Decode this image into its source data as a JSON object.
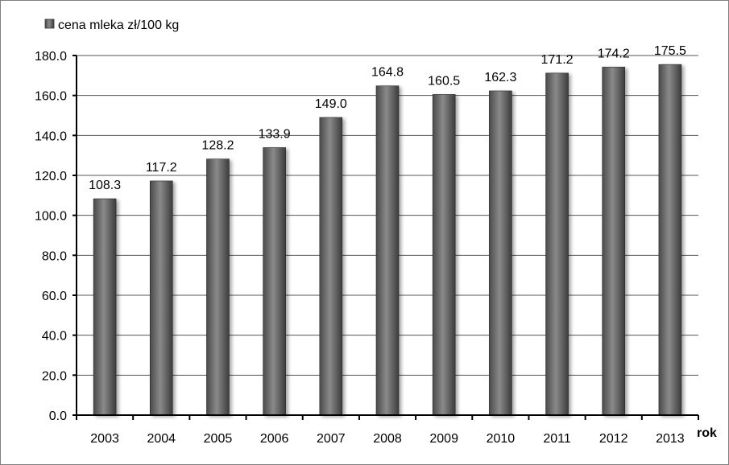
{
  "chart_data": {
    "type": "bar",
    "categories": [
      "2003",
      "2004",
      "2005",
      "2006",
      "2007",
      "2008",
      "2009",
      "2010",
      "2011",
      "2012",
      "2013"
    ],
    "series": [
      {
        "name": "cena mleka zł/100 kg",
        "values": [
          108.3,
          117.2,
          128.2,
          133.9,
          149.0,
          164.8,
          160.5,
          162.3,
          171.2,
          174.2,
          175.5
        ],
        "labels": [
          "108.3",
          "117.2",
          "128.2",
          "133.9",
          "149.0",
          "164.8",
          "160.5",
          "162.3",
          "171.2",
          "174.2",
          "175.5"
        ]
      }
    ],
    "xlabel": "rok",
    "ylabel": "",
    "ylim": [
      0,
      180
    ],
    "yticks": [
      "0.0",
      "20.0",
      "40.0",
      "60.0",
      "80.0",
      "100.0",
      "120.0",
      "140.0",
      "160.0",
      "180.0"
    ],
    "grid": true,
    "legend_position": "top-left",
    "bar_color": "#6f6f6f"
  }
}
